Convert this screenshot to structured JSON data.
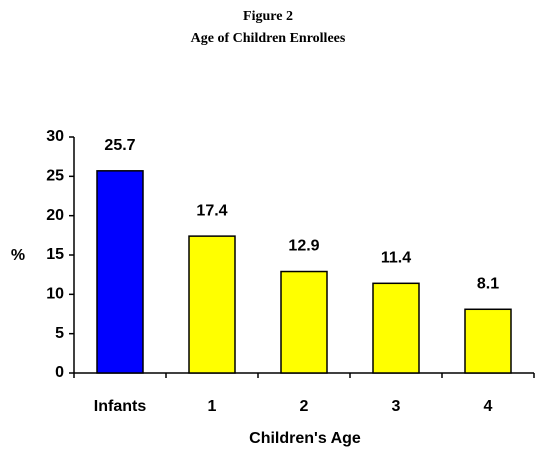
{
  "chart_data": {
    "type": "bar",
    "title": "Figure 2",
    "subtitle": "Age of Children Enrollees",
    "x_label": "Children's Age",
    "y_label": "%",
    "categories": [
      "Infants",
      "1",
      "2",
      "3",
      "4"
    ],
    "values": [
      25.7,
      17.4,
      12.9,
      11.4,
      8.1
    ],
    "colors": [
      "#0000ff",
      "#ffff00",
      "#ffff00",
      "#ffff00",
      "#ffff00"
    ],
    "ylim": [
      0,
      30
    ],
    "yticks": [
      0,
      5,
      10,
      15,
      20,
      25,
      30
    ],
    "grid": false
  }
}
